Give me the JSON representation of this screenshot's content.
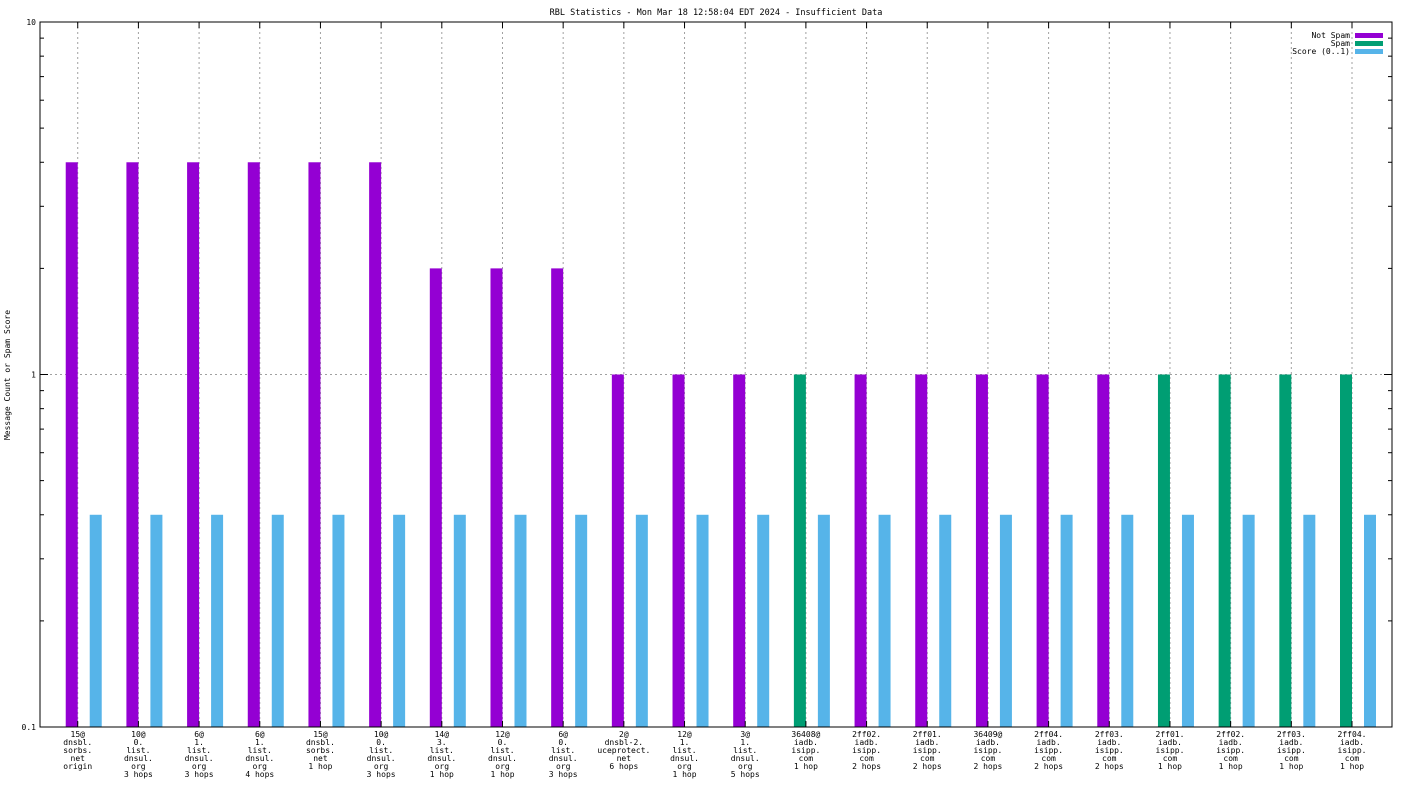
{
  "chart_data": {
    "type": "bar",
    "title": "RBL Statistics - Mon Mar 18 12:58:04 EDT 2024 - Insufficient Data",
    "xlabel": "",
    "ylabel": "Message Count or Spam Score",
    "yscale": "log",
    "ylim": [
      0.1,
      10
    ],
    "yticks": [
      0.1,
      1,
      10
    ],
    "ytick_labels": [
      "0.1",
      "1",
      "10"
    ],
    "grid": true,
    "legend_position": "top-right",
    "categories": [
      [
        "15@",
        "dnsbl.",
        "sorbs.",
        "net",
        "origin"
      ],
      [
        "10@",
        "0.",
        "list.",
        "dnsul.",
        "org",
        "3 hops"
      ],
      [
        "6@",
        "1.",
        "list.",
        "dnsul.",
        "org",
        "3 hops"
      ],
      [
        "6@",
        "1.",
        "list.",
        "dnsul.",
        "org",
        "4 hops"
      ],
      [
        "15@",
        "dnsbl.",
        "sorbs.",
        "net",
        "1 hop"
      ],
      [
        "10@",
        "0.",
        "list.",
        "dnsul.",
        "org",
        "3 hops"
      ],
      [
        "14@",
        "3.",
        "list.",
        "dnsul.",
        "org",
        "1 hop"
      ],
      [
        "12@",
        "0.",
        "list.",
        "dnsul.",
        "org",
        "1 hop"
      ],
      [
        "6@",
        "0.",
        "list.",
        "dnsul.",
        "org",
        "3 hops"
      ],
      [
        "2@",
        "dnsbl-2.",
        "uceprotect.",
        "net",
        "6 hops"
      ],
      [
        "12@",
        "1.",
        "list.",
        "dnsul.",
        "org",
        "1 hop"
      ],
      [
        "3@",
        "1.",
        "list.",
        "dnsul.",
        "org",
        "5 hops"
      ],
      [
        "36408@",
        "iadb.",
        "isipp.",
        "com",
        "1 hop"
      ],
      [
        "2ff02.",
        "iadb.",
        "isipp.",
        "com",
        "2 hops"
      ],
      [
        "2ff01.",
        "iadb.",
        "isipp.",
        "com",
        "2 hops"
      ],
      [
        "36409@",
        "iadb.",
        "isipp.",
        "com",
        "2 hops"
      ],
      [
        "2ff04.",
        "iadb.",
        "isipp.",
        "com",
        "2 hops"
      ],
      [
        "2ff03.",
        "iadb.",
        "isipp.",
        "com",
        "2 hops"
      ],
      [
        "2ff01.",
        "iadb.",
        "isipp.",
        "com",
        "1 hop"
      ],
      [
        "2ff02.",
        "iadb.",
        "isipp.",
        "com",
        "1 hop"
      ],
      [
        "2ff03.",
        "iadb.",
        "isipp.",
        "com",
        "1 hop"
      ],
      [
        "2ff04.",
        "iadb.",
        "isipp.",
        "com",
        "1 hop"
      ]
    ],
    "series": [
      {
        "name": "Not Spam",
        "color": "#9400d3",
        "values": [
          4,
          4,
          4,
          4,
          4,
          4,
          2,
          2,
          2,
          1,
          1,
          1,
          null,
          1,
          1,
          1,
          1,
          1,
          null,
          null,
          null,
          null
        ]
      },
      {
        "name": "Spam",
        "color": "#009e73",
        "values": [
          null,
          null,
          null,
          null,
          null,
          null,
          null,
          null,
          null,
          null,
          null,
          null,
          1,
          null,
          null,
          null,
          null,
          null,
          1,
          1,
          1,
          1
        ]
      },
      {
        "name": "Score (0..1)",
        "color": "#56b4e9",
        "values": [
          0.4,
          0.4,
          0.4,
          0.4,
          0.4,
          0.4,
          0.4,
          0.4,
          0.4,
          0.4,
          0.4,
          0.4,
          0.4,
          0.4,
          0.4,
          0.4,
          0.4,
          0.4,
          0.4,
          0.4,
          0.4,
          0.4
        ]
      }
    ]
  }
}
